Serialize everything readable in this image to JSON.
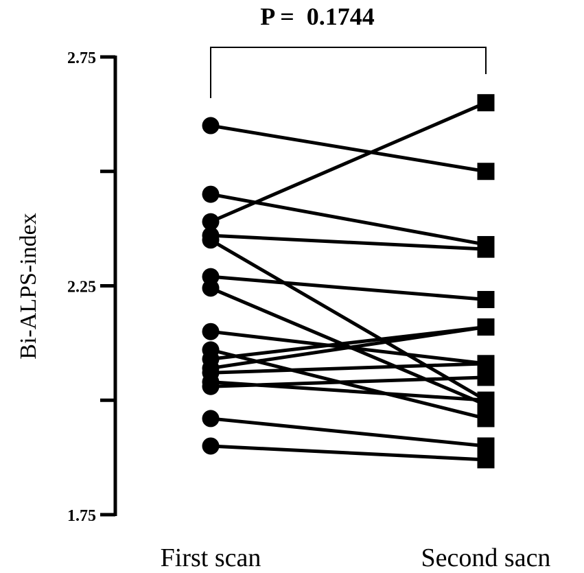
{
  "chart_data": {
    "type": "line",
    "title": "",
    "ylabel": "Bi-ALPS-index",
    "xlabel": "",
    "categories": [
      "First scan",
      "Second sacn"
    ],
    "ylim": [
      1.75,
      2.75
    ],
    "yticks": [
      1.75,
      2.0,
      2.25,
      2.5,
      2.75
    ],
    "yticklabels": [
      "1.75",
      "",
      "2.25",
      "",
      "2.75"
    ],
    "annotation": "P =  0.1744",
    "grid": false,
    "legend": "none",
    "colors": {
      "line": "#000000",
      "marker": "#000000"
    },
    "markers": [
      "circle",
      "square"
    ],
    "pairs": [
      [
        2.6,
        2.5
      ],
      [
        2.45,
        2.34
      ],
      [
        2.39,
        2.65
      ],
      [
        2.36,
        2.33
      ],
      [
        2.35,
        2.0
      ],
      [
        2.27,
        2.22
      ],
      [
        2.245,
        1.99
      ],
      [
        2.15,
        2.08
      ],
      [
        2.11,
        1.96
      ],
      [
        2.09,
        2.16
      ],
      [
        2.07,
        2.16
      ],
      [
        2.06,
        2.08
      ],
      [
        2.04,
        2.0
      ],
      [
        2.03,
        2.05
      ],
      [
        1.96,
        1.9
      ],
      [
        1.9,
        1.87
      ]
    ]
  }
}
